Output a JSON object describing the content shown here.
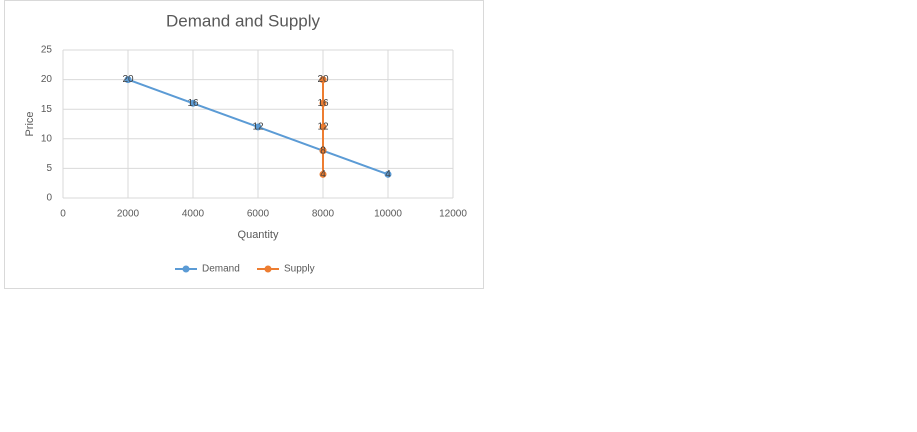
{
  "chart_data": {
    "type": "scatter",
    "title": "Demand and Supply",
    "x_label": "Quantity",
    "y_label": "Price",
    "xlim": [
      0,
      12000
    ],
    "xticks": [
      0,
      2000,
      4000,
      6000,
      8000,
      10000,
      12000
    ],
    "ylim": [
      0,
      25
    ],
    "yticks": [
      0,
      5,
      10,
      15,
      20,
      25
    ],
    "grid": true,
    "legend": "bottom",
    "series": [
      {
        "name": "Demand",
        "color": "#5b9bd5",
        "x": [
          2000,
          4000,
          6000,
          8000,
          10000
        ],
        "values": [
          20,
          16,
          12,
          8,
          4
        ]
      },
      {
        "name": "Supply",
        "color": "#ed7d31",
        "x": [
          8000,
          8000,
          8000,
          8000,
          8000
        ],
        "values": [
          20,
          16,
          12,
          8,
          4
        ]
      }
    ]
  }
}
